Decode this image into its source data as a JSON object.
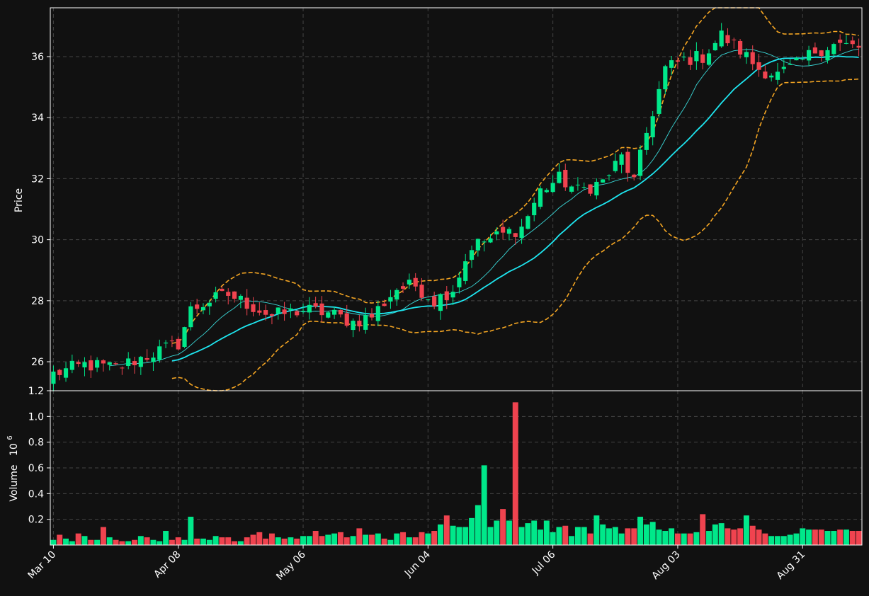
{
  "colors": {
    "background": "#111111",
    "up": "#00e88a",
    "down": "#f0434f",
    "ma_fast": "#3ad8d8",
    "ma_slow": "#1ee6f0",
    "bands": "#f5a623",
    "text": "#ffffff",
    "grid": "#444444",
    "frame": "#ffffff"
  },
  "chart_data": [
    {
      "type": "candlestick",
      "ylabel": "Price",
      "ylim": [
        25.05,
        37.6
      ],
      "yticks": [
        26,
        28,
        30,
        32,
        34,
        36
      ],
      "yticklabels": [
        "26",
        "28",
        "30",
        "32",
        "34",
        "36"
      ],
      "grid": true,
      "n_bars": 130,
      "start_date": "Mar 10",
      "xticks": [
        {
          "index": 0,
          "label": "Mar 10"
        },
        {
          "index": 20,
          "label": "Apr 08"
        },
        {
          "index": 40,
          "label": "May 06"
        },
        {
          "index": 60,
          "label": "Jun 04"
        },
        {
          "index": 80,
          "label": "Jul 06"
        },
        {
          "index": 100,
          "label": "Aug 03"
        },
        {
          "index": 120,
          "label": "Aug 31"
        }
      ],
      "anchors": {
        "index": [
          0,
          5,
          10,
          15,
          20,
          22,
          25,
          28,
          31,
          35,
          40,
          44,
          48,
          51,
          55,
          58,
          61,
          64,
          67,
          71,
          75,
          78,
          81,
          84,
          88,
          91,
          93,
          95,
          98,
          101,
          104,
          107,
          110,
          113,
          116,
          119,
          122,
          125,
          129
        ],
        "close": [
          25.6,
          25.9,
          25.8,
          26.2,
          26.6,
          27.7,
          28.0,
          28.2,
          27.9,
          27.5,
          27.7,
          27.6,
          27.3,
          27.5,
          28.4,
          28.5,
          28.0,
          28.4,
          29.8,
          30.1,
          30.4,
          31.6,
          32.0,
          31.6,
          31.9,
          32.7,
          31.9,
          33.5,
          35.6,
          35.9,
          36.0,
          36.7,
          36.2,
          35.6,
          35.4,
          35.7,
          36.2,
          36.4,
          36.3
        ]
      },
      "ma_fast_window": 10,
      "ma_slow_window": 20,
      "band_window": 20,
      "band_std": 2
    },
    {
      "type": "bar",
      "ylabel": "Volume",
      "ylabel_exponent": "10",
      "ylabel_power": "6",
      "ylim": [
        0,
        1.2
      ],
      "yticks": [
        0.2,
        0.4,
        0.6,
        0.8,
        1.0,
        1.2
      ],
      "yticklabels": [
        "0.2",
        "0.4",
        "0.6",
        "0.8",
        "1.0",
        "1.2"
      ],
      "grid": true,
      "values": [
        0.04,
        0.08,
        0.05,
        0.03,
        0.09,
        0.07,
        0.04,
        0.04,
        0.14,
        0.06,
        0.04,
        0.03,
        0.03,
        0.04,
        0.07,
        0.06,
        0.04,
        0.03,
        0.11,
        0.04,
        0.06,
        0.04,
        0.22,
        0.05,
        0.05,
        0.04,
        0.07,
        0.06,
        0.06,
        0.03,
        0.03,
        0.06,
        0.08,
        0.1,
        0.05,
        0.09,
        0.06,
        0.05,
        0.06,
        0.05,
        0.07,
        0.07,
        0.11,
        0.07,
        0.08,
        0.09,
        0.1,
        0.06,
        0.07,
        0.13,
        0.08,
        0.08,
        0.09,
        0.05,
        0.04,
        0.09,
        0.1,
        0.06,
        0.06,
        0.1,
        0.09,
        0.11,
        0.16,
        0.23,
        0.15,
        0.14,
        0.14,
        0.21,
        0.31,
        0.62,
        0.14,
        0.19,
        0.28,
        0.19,
        1.11,
        0.14,
        0.17,
        0.19,
        0.12,
        0.19,
        0.1,
        0.14,
        0.15,
        0.07,
        0.14,
        0.14,
        0.09,
        0.23,
        0.16,
        0.13,
        0.14,
        0.09,
        0.13,
        0.13,
        0.22,
        0.16,
        0.18,
        0.12,
        0.11,
        0.13,
        0.09,
        0.09,
        0.09,
        0.1,
        0.24,
        0.11,
        0.16,
        0.17,
        0.13,
        0.12,
        0.13,
        0.23,
        0.15,
        0.12,
        0.09,
        0.07,
        0.07,
        0.07,
        0.08,
        0.09,
        0.13,
        0.12,
        0.12,
        0.12,
        0.11,
        0.11,
        0.12,
        0.12,
        0.11,
        0.11
      ]
    }
  ]
}
